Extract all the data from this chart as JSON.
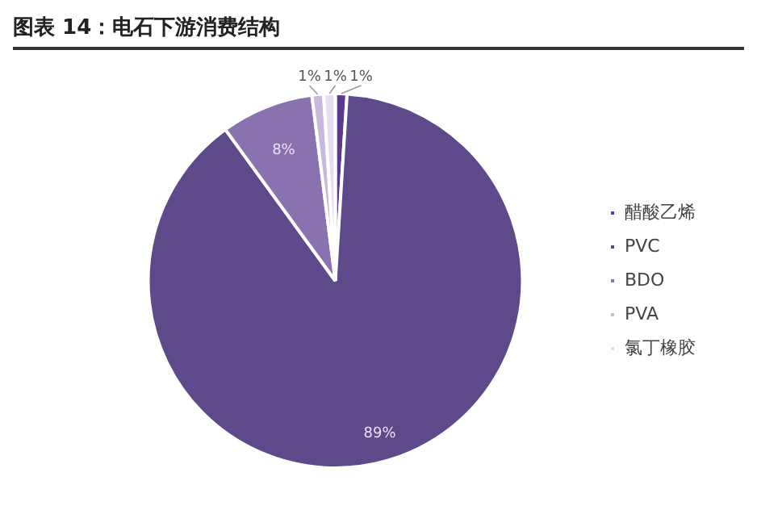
{
  "chart_data": {
    "type": "pie",
    "title": "图表 14：电石下游消费结构",
    "categories": [
      "醋酸乙烯",
      "PVC",
      "BDO",
      "PVA",
      "氯丁橡胶"
    ],
    "values": [
      1,
      89,
      8,
      1,
      1
    ],
    "value_labels": [
      "1%",
      "89%",
      "8%",
      "1%",
      "1%"
    ],
    "colors": [
      "#5b3a8e",
      "#5e4a8a",
      "#8a72b0",
      "#c8b8dc",
      "#e6def0"
    ],
    "legend": "right"
  }
}
